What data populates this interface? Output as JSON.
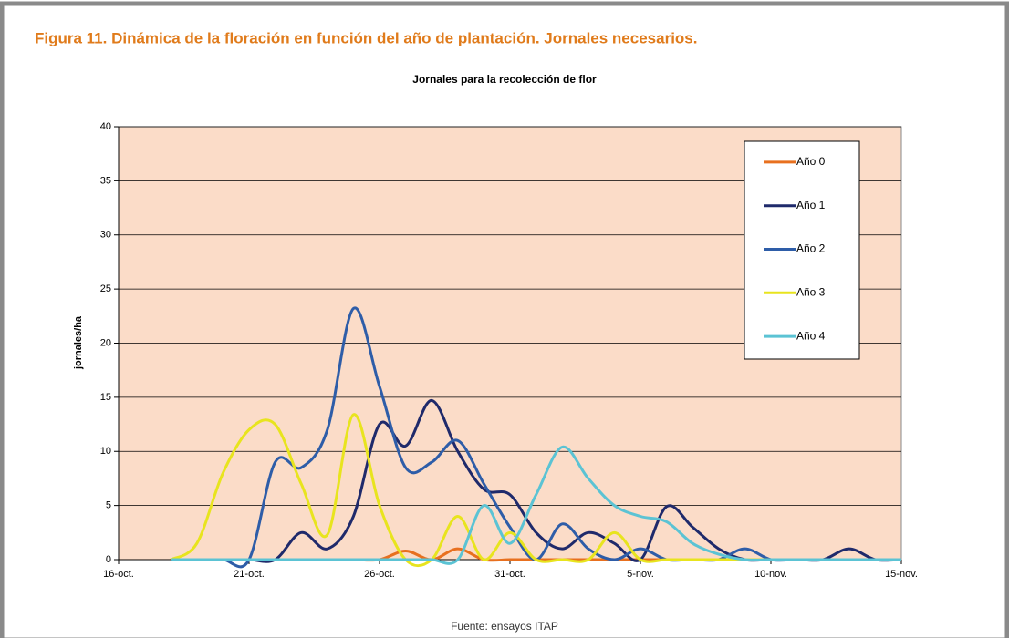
{
  "figure_title": "Figura 11. Dinámica de la floración en función del año de plantación. Jornales necesarios.",
  "source": "Fuente: ensayos ITAP",
  "chart_data": {
    "type": "line",
    "title": "Jornales para la recolección de flor",
    "y_label": "jornales/ha",
    "x": [
      2,
      3,
      4,
      5,
      6,
      7,
      8,
      9,
      10,
      11,
      12,
      13,
      14,
      15,
      16,
      17,
      18,
      19,
      20,
      21,
      22,
      23,
      24,
      25,
      26,
      27,
      28,
      29,
      30
    ],
    "xlim": [
      0,
      30
    ],
    "xticks": [
      {
        "value": 0,
        "label": "16-oct."
      },
      {
        "value": 5,
        "label": "21-oct."
      },
      {
        "value": 10,
        "label": "26-oct."
      },
      {
        "value": 15,
        "label": "31-oct."
      },
      {
        "value": 20,
        "label": "5-nov."
      },
      {
        "value": 25,
        "label": "10-nov."
      },
      {
        "value": 30,
        "label": "15-nov."
      }
    ],
    "ylim": [
      0,
      40
    ],
    "yticks": [
      0,
      5,
      10,
      15,
      20,
      25,
      30,
      35,
      40
    ],
    "grid": true,
    "legend": "upper right",
    "series": [
      {
        "name": "Año 0",
        "color": "#e8701f",
        "values": [
          0,
          0,
          0,
          0,
          0,
          0,
          0,
          0,
          0,
          0.8,
          0,
          1,
          0,
          0,
          0,
          0,
          0,
          0,
          0,
          0,
          0,
          0,
          0,
          0,
          0,
          0,
          0,
          0,
          0
        ]
      },
      {
        "name": "Año 1",
        "color": "#1f2a6b",
        "values": [
          0,
          0,
          0,
          0,
          0,
          2.5,
          1,
          4,
          12.5,
          10.5,
          14.7,
          10,
          6.5,
          6,
          2.5,
          1,
          2.5,
          1.5,
          0,
          4.9,
          3,
          1,
          0,
          0,
          0,
          0,
          1,
          0,
          0
        ]
      },
      {
        "name": "Año 2",
        "color": "#2e5da8",
        "values": [
          0,
          0,
          0,
          0,
          9,
          8.5,
          12,
          23.2,
          16,
          8.5,
          9,
          11,
          7,
          3,
          0,
          3.3,
          1,
          0,
          1,
          0,
          0,
          0,
          1,
          0,
          0,
          0,
          0,
          0,
          0
        ]
      },
      {
        "name": "Año 3",
        "color": "#e8e41e",
        "values": [
          0,
          1.5,
          8,
          12,
          12.5,
          7,
          2.3,
          13.4,
          5,
          0,
          0,
          4,
          0,
          2.5,
          0,
          0,
          0,
          2.5,
          0,
          0,
          0,
          0,
          0,
          0,
          0,
          0,
          0,
          0,
          0
        ]
      },
      {
        "name": "Año 4",
        "color": "#5bc3d4",
        "values": [
          0,
          0,
          0,
          0,
          0,
          0,
          0,
          0,
          0,
          0,
          0,
          0,
          5,
          1.5,
          6,
          10.4,
          7.5,
          5,
          4,
          3.5,
          1.5,
          0.5,
          0,
          0,
          0,
          0,
          0,
          0,
          0
        ]
      }
    ]
  }
}
